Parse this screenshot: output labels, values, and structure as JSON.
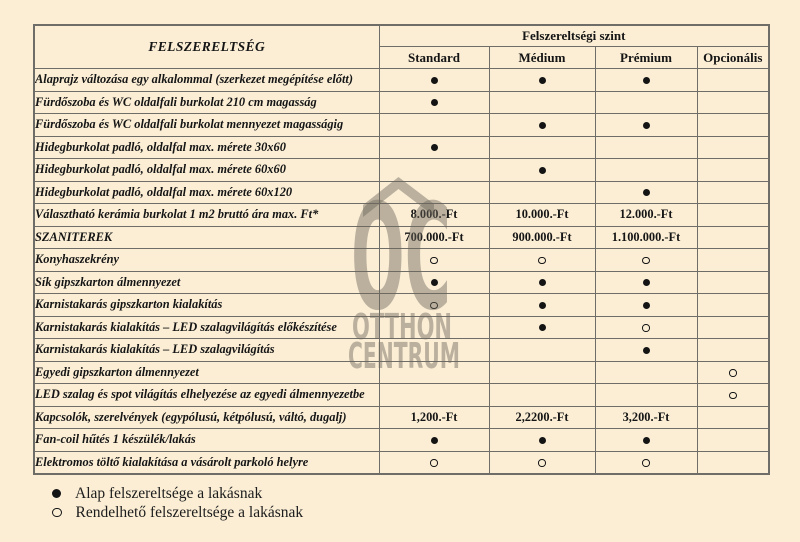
{
  "colors": {
    "background": "#fbeed5",
    "border": "#6f6d68",
    "text": "#151515",
    "watermark": "#6e675c"
  },
  "table": {
    "corner_header": "FELSZERELTSÉG",
    "group_header": "Felszereltségi szint",
    "columns": [
      "Standard",
      "Médium",
      "Prémium",
      "Opcionális"
    ],
    "rows": [
      {
        "label": "Alaprajz változása egy alkalommal (szerkezet megépítése előtt)",
        "cells": [
          "dot",
          "dot",
          "dot",
          ""
        ]
      },
      {
        "label": "Fürdőszoba és WC oldalfali burkolat 210 cm magasság",
        "cells": [
          "dot",
          "",
          "",
          ""
        ]
      },
      {
        "label": "Fürdőszoba és WC oldalfali burkolat mennyezet magasságig",
        "cells": [
          "",
          "dot",
          "dot",
          ""
        ]
      },
      {
        "label": "Hidegburkolat  padló, oldalfal max. mérete 30x60",
        "cells": [
          "dot",
          "",
          "",
          ""
        ]
      },
      {
        "label": "Hidegburkolat  padló, oldalfal  max. mérete 60x60",
        "cells": [
          "",
          "dot",
          "",
          ""
        ]
      },
      {
        "label": "Hidegburkolat  padló, oldalfal max. mérete 60x120",
        "cells": [
          "",
          "",
          "dot",
          ""
        ]
      },
      {
        "label": "Választható kerámia burkolat 1 m2 bruttó ára max. Ft*",
        "cells": [
          "8.000.-Ft",
          "10.000.-Ft",
          "12.000.-Ft",
          ""
        ]
      },
      {
        "label": "SZANITEREK",
        "cells": [
          "700.000.-Ft",
          "900.000.-Ft",
          "1.100.000.-Ft",
          ""
        ]
      },
      {
        "label": "Konyhaszekrény",
        "cells": [
          "circle",
          "circle",
          "circle",
          ""
        ]
      },
      {
        "label": "Sík gipszkarton álmennyezet",
        "cells": [
          "dot",
          "dot",
          "dot",
          ""
        ]
      },
      {
        "label": "Karnistakarás gipszkarton kialakítás",
        "cells": [
          "circle",
          "dot",
          "dot",
          ""
        ]
      },
      {
        "label": "Karnistakarás kialakítás – LED szalagvilágítás előkészítése",
        "cells": [
          "",
          "dot",
          "circle",
          ""
        ]
      },
      {
        "label": "Karnistakarás kialakítás – LED szalagvilágítás",
        "cells": [
          "",
          "",
          "dot",
          ""
        ]
      },
      {
        "label": "Egyedi gipszkarton álmennyezet",
        "cells": [
          "",
          "",
          "",
          "circle"
        ]
      },
      {
        "label": "LED szalag és spot világítás elhelyezése az egyedi álmennyezetbe",
        "cells": [
          "",
          "",
          "",
          "circle"
        ]
      },
      {
        "label": "Kapcsolók, szerelvények (egypólusú, kétpólusú, váltó, dugalj)",
        "cells": [
          "1,200.-Ft",
          "2,2200.-Ft",
          "3,200.-Ft",
          ""
        ]
      },
      {
        "label": "Fan-coil hűtés 1 készülék/lakás",
        "cells": [
          "dot",
          "dot",
          "dot",
          ""
        ]
      },
      {
        "label": "Elektromos töltő kialakítása a vásárolt parkoló helyre",
        "cells": [
          "circle",
          "circle",
          "circle",
          ""
        ]
      }
    ]
  },
  "legend": [
    {
      "marker": "dot",
      "label": "Alap felszereltsége a lakásnak"
    },
    {
      "marker": "circle",
      "label": "Rendelhető felszereltsége a lakásnak"
    }
  ],
  "watermark": {
    "logo": "OC",
    "line1": "OTTHON",
    "line2": "CENTRUM"
  }
}
